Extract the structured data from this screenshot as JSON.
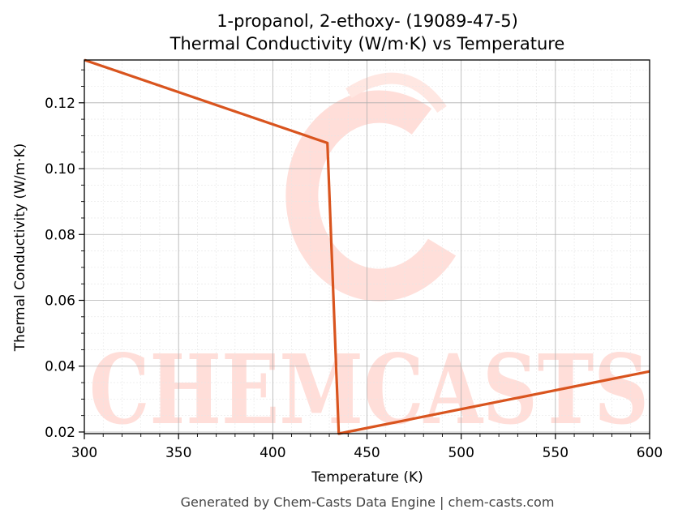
{
  "chart_data": {
    "type": "line",
    "title_line1": "1-propanol, 2-ethoxy- (19089-47-5)",
    "title_line2": "Thermal Conductivity (W/m·K) vs Temperature",
    "xlabel": "Temperature (K)",
    "ylabel": "Thermal Conductivity (W/m·K)",
    "xlim": [
      300,
      600
    ],
    "ylim": [
      0.0195,
      0.133
    ],
    "x_ticks": [
      300,
      350,
      400,
      450,
      500,
      550,
      600
    ],
    "x_tick_labels": [
      "300",
      "350",
      "400",
      "450",
      "500",
      "550",
      "600"
    ],
    "y_ticks": [
      0.02,
      0.04,
      0.06,
      0.08,
      0.1,
      0.12
    ],
    "y_tick_labels": [
      "0.02",
      "0.04",
      "0.06",
      "0.08",
      "0.10",
      "0.12"
    ],
    "grid": true,
    "series": [
      {
        "color": "#d9541e",
        "x": [
          300,
          429,
          435,
          600
        ],
        "y": [
          0.133,
          0.1078,
          0.0195,
          0.0384
        ]
      }
    ]
  },
  "watermark": {
    "text": "CHEMCASTS",
    "color": "#ffd6d0"
  },
  "footer": "Generated by Chem-Casts Data Engine | chem-casts.com"
}
